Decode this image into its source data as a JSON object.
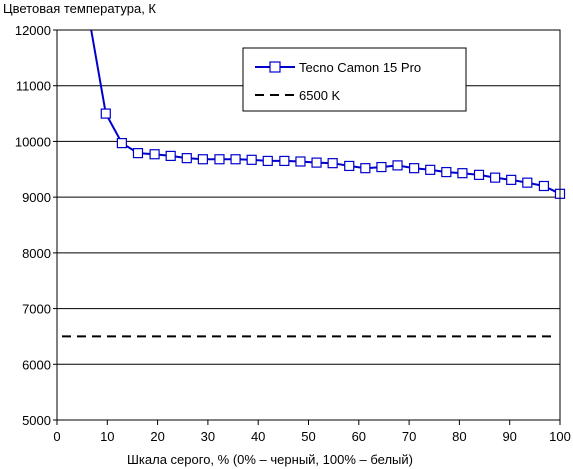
{
  "chart_data": {
    "type": "line",
    "title": "Цветовая температура, К",
    "xlabel": "Шкала серого, % (0% – черный, 100% – белый)",
    "ylabel": "",
    "xlim": [
      0,
      100
    ],
    "ylim": [
      5000,
      12000
    ],
    "xticks": [
      0,
      10,
      20,
      30,
      40,
      50,
      60,
      70,
      80,
      90,
      100
    ],
    "yticks": [
      5000,
      6000,
      7000,
      8000,
      9000,
      10000,
      11000,
      12000
    ],
    "grid": "horizontal",
    "legend_position": "top-right",
    "series": [
      {
        "name": "Tecno Camon 15 Pro",
        "color": "#0000cc",
        "marker": "square",
        "line_start": {
          "x": 6.8,
          "y": 12000
        },
        "x": [
          9.7,
          12.9,
          16.1,
          19.4,
          22.6,
          25.8,
          29.0,
          32.3,
          35.5,
          38.7,
          41.9,
          45.2,
          48.4,
          51.6,
          54.8,
          58.1,
          61.3,
          64.5,
          67.7,
          71.0,
          74.2,
          77.4,
          80.6,
          83.9,
          87.1,
          90.3,
          93.5,
          96.8,
          100.0
        ],
        "values": [
          10500,
          9970,
          9790,
          9770,
          9740,
          9700,
          9680,
          9680,
          9680,
          9670,
          9650,
          9650,
          9640,
          9620,
          9610,
          9560,
          9520,
          9540,
          9570,
          9520,
          9490,
          9450,
          9430,
          9400,
          9350,
          9310,
          9260,
          9200,
          9060
        ]
      },
      {
        "name": "6500 K",
        "color": "#000000",
        "style": "dashed",
        "value": 6500
      }
    ]
  }
}
